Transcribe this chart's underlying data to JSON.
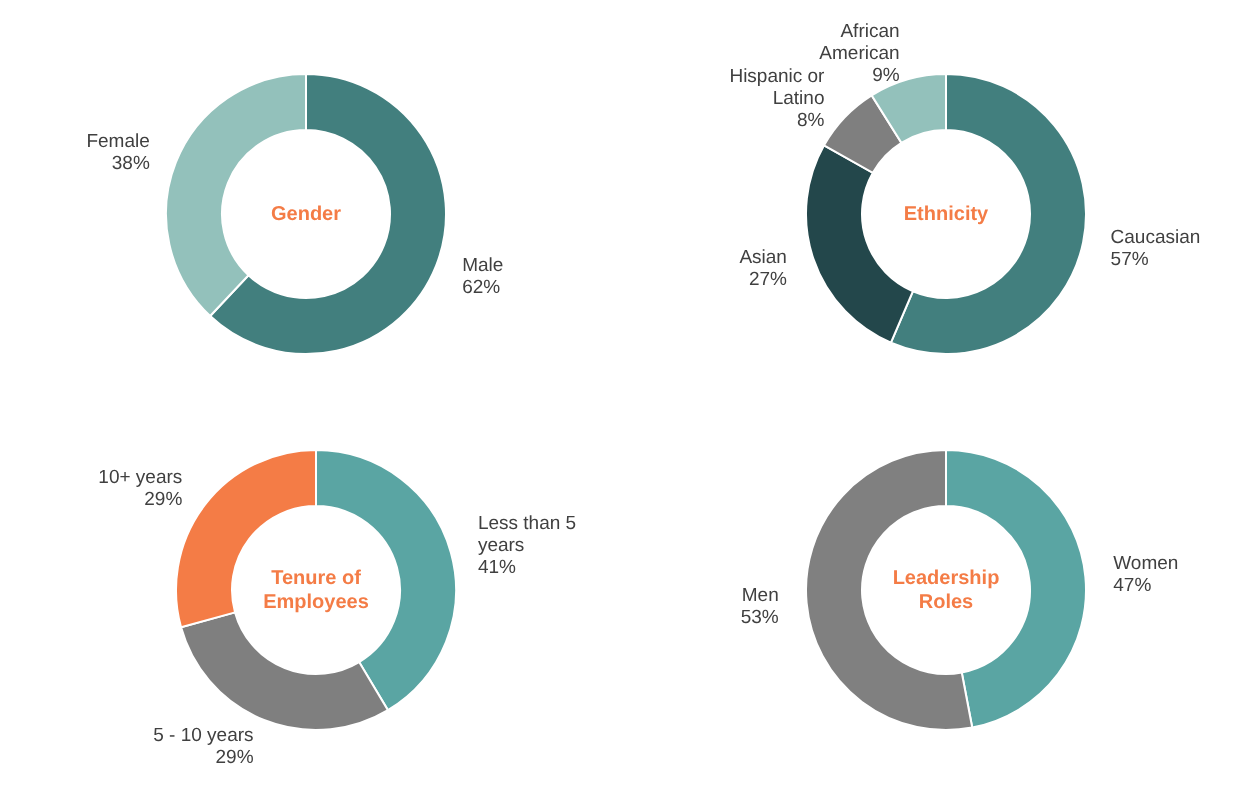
{
  "chart_data": [
    {
      "type": "donut",
      "title": "Gender",
      "categories": [
        "Male",
        "Female"
      ],
      "values": [
        62,
        38
      ],
      "value_labels": [
        "62%",
        "38%"
      ],
      "colors": [
        "#427f7e",
        "#93c1bb"
      ]
    },
    {
      "type": "donut",
      "title": "Ethnicity",
      "categories": [
        "Caucasian",
        "Asian",
        "Hispanic or Latino",
        "African American"
      ],
      "values": [
        57,
        27,
        8,
        9
      ],
      "value_labels": [
        "57%",
        "27%",
        "8%",
        "9%"
      ],
      "colors": [
        "#427f7e",
        "#23474b",
        "#7f7f7f",
        "#93c1bb"
      ]
    },
    {
      "type": "donut",
      "title": "Tenure of Employees",
      "categories": [
        "Less than 5 years",
        "5 - 10 years",
        "10+ years"
      ],
      "values": [
        41,
        29,
        29
      ],
      "value_labels": [
        "41%",
        "29%",
        "29%"
      ],
      "colors": [
        "#5aa5a3",
        "#7f7f7f",
        "#f47c46"
      ]
    },
    {
      "type": "donut",
      "title": "Leadership Roles",
      "categories": [
        "Women",
        "Men"
      ],
      "values": [
        47,
        53
      ],
      "value_labels": [
        "47%",
        "53%"
      ],
      "colors": [
        "#5aa5a3",
        "#808080"
      ]
    }
  ]
}
